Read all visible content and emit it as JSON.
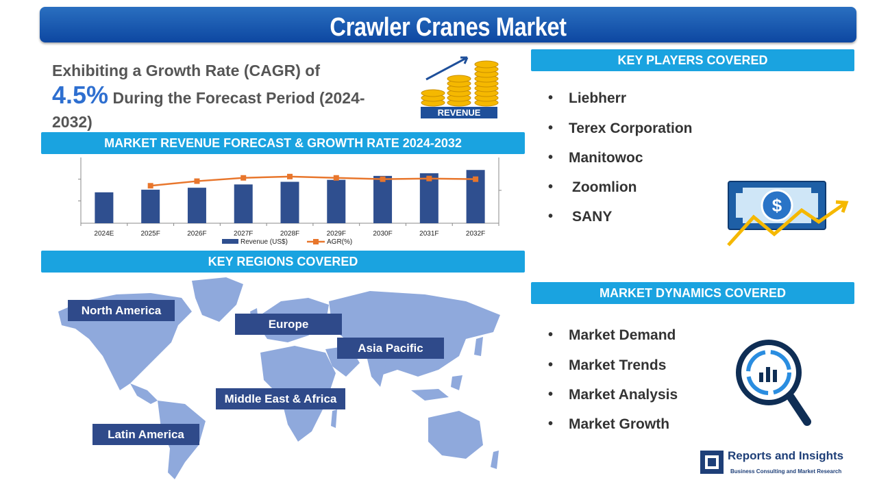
{
  "page": {
    "title": "Crawler Cranes Market"
  },
  "cagr": {
    "line1": "Exhibiting a Growth Rate (CAGR) of",
    "rate": "4.5%",
    "line2": "During the Forecast Period (2024-",
    "line3": "2032)"
  },
  "revenue_icon": {
    "label": "REVENUE"
  },
  "chart_header": "MARKET REVENUE FORECAST & GROWTH RATE 2024-2032",
  "chart_data": {
    "type": "bar",
    "categories": [
      "2024E",
      "2025F",
      "2026F",
      "2027F",
      "2028F",
      "2029F",
      "2030F",
      "2031F",
      "2032F"
    ],
    "series": [
      {
        "name": "Revenue (US$)",
        "type": "bar",
        "values": [
          47,
          51,
          54,
          59,
          63,
          66,
          72,
          76,
          81
        ]
      },
      {
        "name": "AGR(%)",
        "type": "line",
        "values": [
          null,
          5.7,
          6.4,
          6.9,
          7.1,
          6.9,
          6.7,
          6.8,
          6.7
        ]
      }
    ],
    "ylim": [
      0,
      100
    ],
    "y2lim": [
      0,
      10
    ],
    "grid": false,
    "legend": "bottom",
    "colors": {
      "bar": "#2f4f8f",
      "line": "#e8762c"
    }
  },
  "players": {
    "header": "KEY PLAYERS COVERED",
    "items": [
      "Liebherr",
      "Terex Corporation",
      "Manitowoc",
      "Zoomlion",
      "SANY"
    ]
  },
  "regions": {
    "header": "KEY REGIONS COVERED",
    "items": [
      "North America",
      "Europe",
      "Asia Pacific",
      "Middle East & Africa",
      "Latin America"
    ]
  },
  "dynamics": {
    "header": "MARKET DYNAMICS COVERED",
    "items": [
      "Market Demand",
      "Market Trends",
      "Market Analysis",
      "Market Growth"
    ]
  },
  "brand": {
    "name": "Reports and Insights",
    "tagline": "Business Consulting and Market Research"
  },
  "colors": {
    "accent": "#1aa3e0",
    "title_bar": "#0d47a1",
    "region_label": "#2f4a8a",
    "map": "#8fa9dc"
  }
}
